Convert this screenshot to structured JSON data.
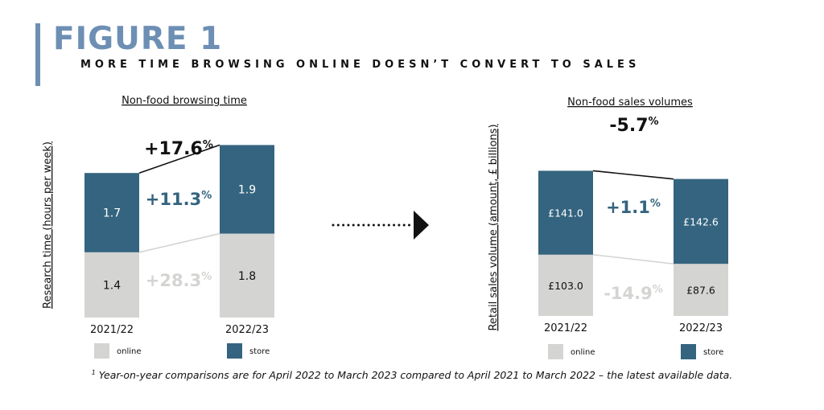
{
  "header": {
    "title": "FIGURE 1",
    "subtitle": "MORE TIME BROWSING ONLINE DOESN’T CONVERT TO SALES"
  },
  "colors": {
    "store": "#34647f",
    "online": "#d4d4d2",
    "accent": "#6d8fb4",
    "dark": "#111111"
  },
  "chart_data": [
    {
      "type": "bar",
      "stacked": true,
      "title": "Non-food browsing time",
      "ylabel": "Research time (hours per week)",
      "categories": [
        "2021/22",
        "2022/23"
      ],
      "series": [
        {
          "name": "online",
          "values": [
            1.4,
            1.8
          ],
          "labels": [
            "1.4",
            "1.8"
          ]
        },
        {
          "name": "store",
          "values": [
            1.7,
            1.9
          ],
          "labels": [
            "1.7",
            "1.9"
          ]
        }
      ],
      "changes": {
        "total": "+17.6",
        "store": "+11.3",
        "online": "+28.3",
        "unit": "%"
      },
      "legend": [
        {
          "name": "online"
        },
        {
          "name": "store"
        }
      ]
    },
    {
      "type": "bar",
      "stacked": true,
      "title": "Non-food sales volumes",
      "ylabel": "Retail sales volume (amount, £ billions)",
      "categories": [
        "2021/22",
        "2022/23"
      ],
      "series": [
        {
          "name": "online",
          "values": [
            103.0,
            87.6
          ],
          "labels": [
            "£103.0",
            "£87.6"
          ]
        },
        {
          "name": "store",
          "values": [
            141.0,
            142.6
          ],
          "labels": [
            "£141.0",
            "£142.6"
          ]
        }
      ],
      "changes": {
        "total": "-5.7",
        "store": "+1.1",
        "online": "-14.9",
        "unit": "%"
      },
      "legend": [
        {
          "name": "online"
        },
        {
          "name": "store"
        }
      ]
    }
  ],
  "footnote": {
    "marker": "1",
    "text": "Year-on-year comparisons are for April 2022 to March 2023 compared to April 2021 to March 2022 – the latest available data."
  }
}
